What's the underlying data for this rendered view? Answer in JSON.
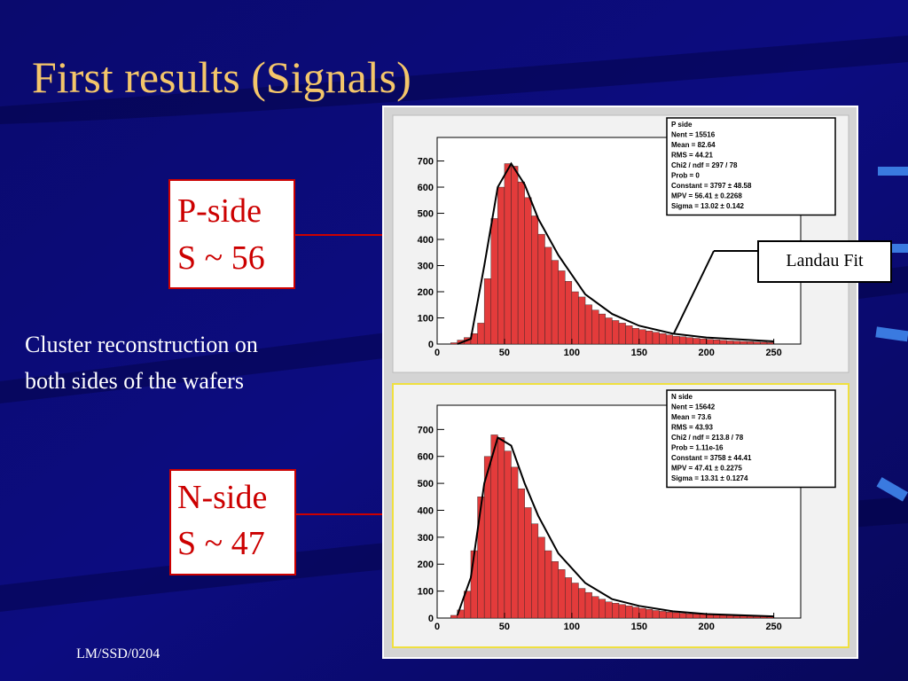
{
  "title": "First results (Signals)",
  "p_side": {
    "name": "P-side",
    "signal": "S ~ 56"
  },
  "n_side": {
    "name": "N-side",
    "signal": "S ~ 47"
  },
  "description": [
    "Cluster reconstruction on",
    "both sides of the wafers"
  ],
  "callout": "Landau Fit",
  "footer": "LM/SSD/0204",
  "chart_data": [
    {
      "type": "histogram",
      "color": "#e33b3b",
      "bins": [
        10,
        15,
        20,
        25,
        30,
        35,
        40,
        45,
        50,
        55,
        60,
        65,
        70,
        75,
        80,
        85,
        90,
        95,
        100,
        105,
        110,
        115,
        120,
        125,
        130,
        135,
        140,
        145,
        150,
        155,
        160,
        165,
        170,
        175,
        180,
        185,
        190,
        195,
        200,
        205,
        210,
        215,
        220,
        225,
        230,
        235,
        240,
        245,
        250
      ],
      "values": [
        5,
        15,
        25,
        40,
        80,
        250,
        480,
        600,
        690,
        680,
        620,
        560,
        490,
        420,
        370,
        320,
        280,
        240,
        200,
        180,
        150,
        130,
        115,
        100,
        90,
        80,
        70,
        60,
        55,
        50,
        45,
        40,
        35,
        30,
        28,
        25,
        22,
        20,
        18,
        16,
        14,
        12,
        11,
        10,
        9,
        8,
        7,
        6
      ],
      "fit": {
        "x": [
          15,
          25,
          35,
          45,
          55,
          65,
          75,
          90,
          110,
          130,
          150,
          175,
          200,
          250
        ],
        "values": [
          0,
          20,
          300,
          600,
          690,
          610,
          480,
          340,
          190,
          115,
          70,
          40,
          25,
          10
        ]
      },
      "xlim": [
        0,
        270
      ],
      "ylim": [
        0,
        790
      ],
      "xticks": [
        0,
        50,
        100,
        150,
        200,
        250
      ],
      "yticks": [
        0,
        100,
        200,
        300,
        400,
        500,
        600,
        700
      ],
      "stats": [
        "P side",
        "Nent = 15516",
        "Mean = 82.64",
        "RMS = 44.21",
        "Chi2 / ndf = 297 / 78",
        "Prob = 0",
        "Constant = 3797 ± 48.58",
        "MPV = 56.41 ± 0.2268",
        "Sigma = 13.02 ± 0.142"
      ]
    },
    {
      "type": "histogram",
      "color": "#e33b3b",
      "bins": [
        10,
        15,
        20,
        25,
        30,
        35,
        40,
        45,
        50,
        55,
        60,
        65,
        70,
        75,
        80,
        85,
        90,
        95,
        100,
        105,
        110,
        115,
        120,
        125,
        130,
        135,
        140,
        145,
        150,
        155,
        160,
        165,
        170,
        175,
        180,
        185,
        190,
        195,
        200,
        205,
        210,
        215,
        220,
        225,
        230,
        235,
        240,
        245,
        250
      ],
      "values": [
        10,
        30,
        100,
        250,
        450,
        600,
        680,
        670,
        620,
        560,
        480,
        410,
        350,
        300,
        250,
        210,
        180,
        150,
        130,
        110,
        95,
        80,
        70,
        60,
        55,
        50,
        45,
        40,
        36,
        32,
        28,
        25,
        22,
        20,
        18,
        16,
        15,
        14,
        12,
        11,
        10,
        9,
        8,
        8,
        7,
        6,
        6,
        5
      ],
      "fit": {
        "x": [
          15,
          25,
          35,
          45,
          55,
          65,
          75,
          90,
          110,
          130,
          150,
          175,
          200,
          250
        ],
        "values": [
          10,
          150,
          500,
          670,
          640,
          500,
          380,
          240,
          130,
          70,
          45,
          25,
          15,
          6
        ]
      },
      "xlim": [
        0,
        270
      ],
      "ylim": [
        0,
        790
      ],
      "xticks": [
        0,
        50,
        100,
        150,
        200,
        250
      ],
      "yticks": [
        0,
        100,
        200,
        300,
        400,
        500,
        600,
        700
      ],
      "stats": [
        "N side",
        "Nent = 15642",
        "Mean = 73.6",
        "RMS = 43.93",
        "Chi2 / ndf = 213.8 / 78",
        "Prob = 1.11e-16",
        "Constant = 3758 ± 44.41",
        "MPV = 47.41 ± 0.2275",
        "Sigma = 13.31 ± 0.1274"
      ]
    }
  ]
}
